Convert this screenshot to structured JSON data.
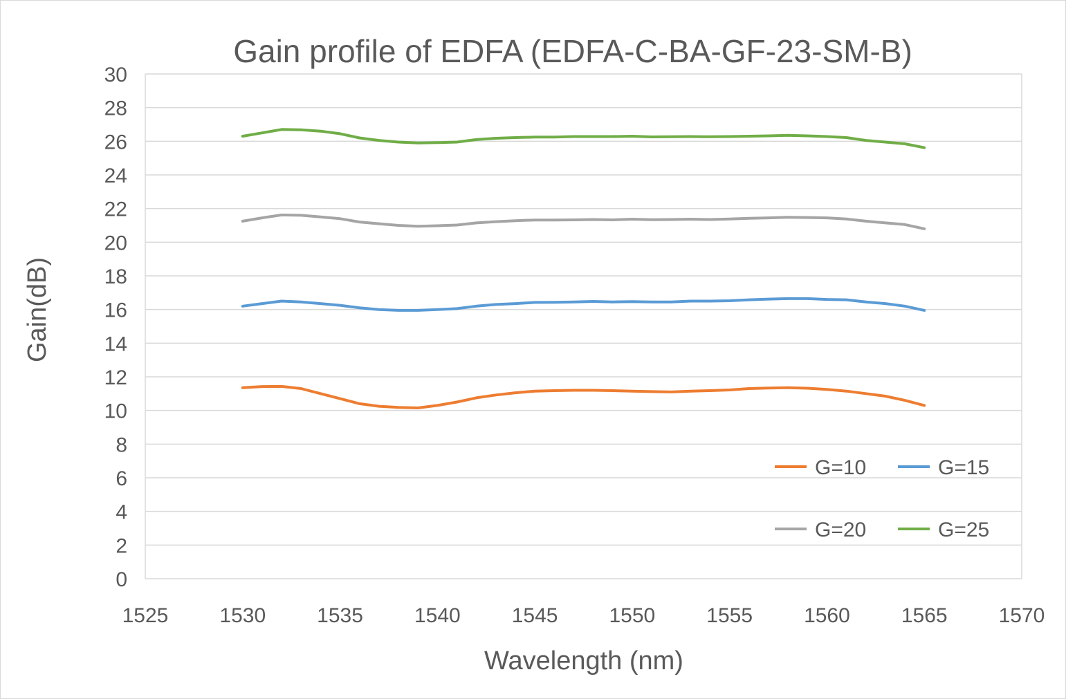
{
  "chart_data": {
    "type": "line",
    "title": "Gain profile of EDFA (EDFA-C-BA-GF-23-SM-B)",
    "xlabel": "Wavelength (nm)",
    "ylabel": "Gain(dB)",
    "xlim": [
      1525,
      1570
    ],
    "ylim": [
      0,
      30
    ],
    "x_ticks": [
      1525,
      1530,
      1535,
      1540,
      1545,
      1550,
      1555,
      1560,
      1565,
      1570
    ],
    "y_ticks": [
      0,
      2,
      4,
      6,
      8,
      10,
      12,
      14,
      16,
      18,
      20,
      22,
      24,
      26,
      28,
      30
    ],
    "grid": "horizontal",
    "legend_position": "bottom-right",
    "x": [
      1530,
      1531,
      1532,
      1533,
      1534,
      1535,
      1536,
      1537,
      1538,
      1539,
      1540,
      1541,
      1542,
      1543,
      1544,
      1545,
      1546,
      1547,
      1548,
      1549,
      1550,
      1551,
      1552,
      1553,
      1554,
      1555,
      1556,
      1557,
      1558,
      1559,
      1560,
      1561,
      1562,
      1563,
      1564,
      1565
    ],
    "series": [
      {
        "name": "G=10",
        "color": "#ed7d31",
        "values": [
          11.35,
          11.42,
          11.43,
          11.3,
          11.0,
          10.7,
          10.4,
          10.25,
          10.18,
          10.15,
          10.3,
          10.5,
          10.75,
          10.92,
          11.05,
          11.15,
          11.18,
          11.2,
          11.2,
          11.18,
          11.15,
          11.12,
          11.1,
          11.15,
          11.18,
          11.22,
          11.3,
          11.33,
          11.35,
          11.32,
          11.25,
          11.15,
          11.0,
          10.85,
          10.6,
          10.3
        ]
      },
      {
        "name": "G=15",
        "color": "#5b9bd5",
        "values": [
          16.2,
          16.35,
          16.5,
          16.45,
          16.35,
          16.25,
          16.1,
          16.0,
          15.95,
          15.95,
          16.0,
          16.05,
          16.2,
          16.3,
          16.35,
          16.42,
          16.43,
          16.45,
          16.48,
          16.45,
          16.47,
          16.45,
          16.45,
          16.5,
          16.5,
          16.52,
          16.58,
          16.62,
          16.65,
          16.65,
          16.6,
          16.58,
          16.45,
          16.35,
          16.2,
          15.95
        ]
      },
      {
        "name": "G=20",
        "color": "#a5a5a5",
        "values": [
          21.25,
          21.45,
          21.62,
          21.6,
          21.5,
          21.4,
          21.2,
          21.1,
          21.0,
          20.95,
          20.98,
          21.02,
          21.15,
          21.22,
          21.28,
          21.32,
          21.32,
          21.33,
          21.35,
          21.33,
          21.37,
          21.34,
          21.35,
          21.37,
          21.35,
          21.38,
          21.42,
          21.45,
          21.48,
          21.47,
          21.45,
          21.38,
          21.25,
          21.15,
          21.05,
          20.8
        ]
      },
      {
        "name": "G=25",
        "color": "#70ad47",
        "values": [
          26.3,
          26.5,
          26.7,
          26.68,
          26.6,
          26.45,
          26.2,
          26.05,
          25.95,
          25.9,
          25.92,
          25.95,
          26.1,
          26.18,
          26.22,
          26.25,
          26.25,
          26.28,
          26.28,
          26.28,
          26.3,
          26.26,
          26.27,
          26.28,
          26.27,
          26.28,
          26.3,
          26.32,
          26.35,
          26.32,
          26.28,
          26.22,
          26.05,
          25.95,
          25.85,
          25.62
        ]
      }
    ]
  }
}
